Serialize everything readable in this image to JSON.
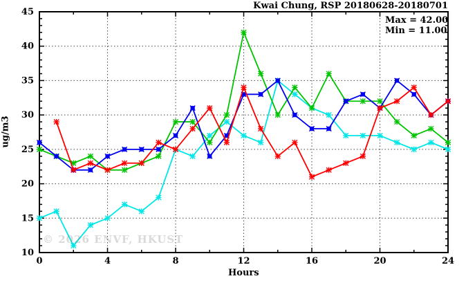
{
  "chart_data": {
    "type": "line",
    "title": "Kwai Chung, RSP 20180628-20180701",
    "xlabel": "Hours",
    "ylabel": "ug/m3",
    "xlim": [
      0,
      24
    ],
    "ylim": [
      10,
      45
    ],
    "xticks": [
      0,
      4,
      8,
      12,
      16,
      20,
      24
    ],
    "yticks": [
      10,
      15,
      20,
      25,
      30,
      35,
      40,
      45
    ],
    "x_minor_step": 2,
    "y_minor_step": 1,
    "grid": true,
    "legend_position": "none",
    "annotations": {
      "max_label": "Max = 42.00",
      "min_label": "Min = 11.00"
    },
    "watermark": "© 2026 ENVF, HKUST",
    "series": [
      {
        "name": "series-cyan",
        "color": "#00e6e6",
        "marker": "asterisk",
        "x": [
          0,
          1,
          2,
          3,
          4,
          5,
          6,
          7,
          8,
          9,
          10,
          11,
          12,
          13,
          14,
          15,
          16,
          17,
          18,
          19,
          20,
          21,
          22,
          23,
          24
        ],
        "values": [
          15,
          16,
          11,
          14,
          15,
          17,
          16,
          18,
          25,
          24,
          27,
          29,
          27,
          26,
          35,
          33,
          31,
          30,
          27,
          27,
          27,
          26,
          25,
          26,
          25
        ]
      },
      {
        "name": "series-green",
        "color": "#00c400",
        "marker": "asterisk",
        "x": [
          0,
          1,
          2,
          3,
          4,
          5,
          6,
          7,
          8,
          9,
          10,
          11,
          12,
          13,
          14,
          15,
          16,
          17,
          18,
          19,
          20,
          21,
          22,
          23,
          24
        ],
        "values": [
          25,
          24,
          23,
          24,
          22,
          22,
          23,
          24,
          29,
          29,
          26,
          30,
          42,
          36,
          30,
          34,
          31,
          36,
          32,
          32,
          32,
          29,
          27,
          28,
          26
        ]
      },
      {
        "name": "series-blue",
        "color": "#0000f0",
        "marker": "square-x",
        "x": [
          0,
          1,
          2,
          3,
          4,
          5,
          6,
          7,
          8,
          9,
          10,
          11,
          12,
          13,
          14,
          15,
          16,
          17,
          18,
          19,
          20,
          21,
          22,
          23,
          24
        ],
        "values": [
          26,
          24,
          22,
          22,
          24,
          25,
          25,
          25,
          27,
          31,
          24,
          27,
          33,
          33,
          35,
          30,
          28,
          28,
          32,
          33,
          31,
          35,
          33,
          30,
          32
        ]
      },
      {
        "name": "series-red",
        "color": "#ff0000",
        "marker": "asterisk",
        "x": [
          1,
          2,
          3,
          4,
          5,
          6,
          7,
          8,
          9,
          10,
          11,
          12,
          13,
          14,
          15,
          16,
          17,
          18,
          19,
          20,
          21,
          22,
          23,
          24
        ],
        "values": [
          29,
          22,
          23,
          22,
          23,
          23,
          26,
          25,
          28,
          31,
          26,
          34,
          28,
          24,
          26,
          21,
          22,
          23,
          24,
          31,
          32,
          34,
          30,
          32
        ]
      }
    ]
  }
}
